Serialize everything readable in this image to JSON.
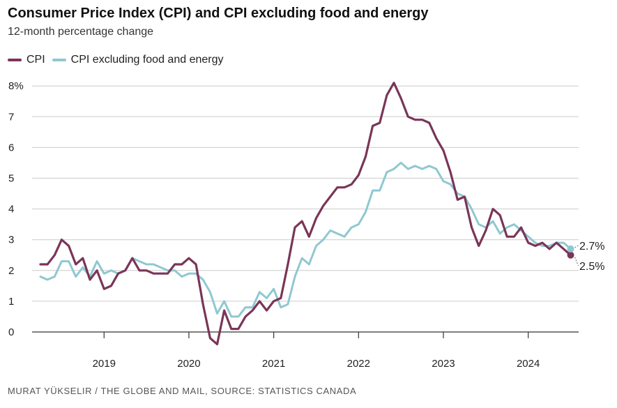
{
  "chart_data": {
    "type": "line",
    "title": "Consumer Price Index (CPI) and CPI excluding food and energy",
    "subtitle": "12-month percentage change",
    "ylim": [
      -0.5,
      8
    ],
    "yticks": [
      0,
      1,
      2,
      3,
      4,
      5,
      6,
      7,
      8
    ],
    "ytick_labels": [
      "0",
      "1",
      "2",
      "3",
      "4",
      "5",
      "6",
      "7",
      "8%"
    ],
    "x_start": "2018-04",
    "x_end": "2024-07",
    "xtick_labels": [
      "2019",
      "2020",
      "2021",
      "2022",
      "2023",
      "2024"
    ],
    "grid": true,
    "legend_position": "top-left",
    "source": "MURAT YÜKSELIR / THE GLOBE AND MAIL, SOURCE: STATISTICS CANADA",
    "series": [
      {
        "name": "CPI",
        "color": "#7a3558",
        "end_label": "2.5%",
        "values": [
          2.2,
          2.2,
          2.5,
          3.0,
          2.8,
          2.2,
          2.4,
          1.7,
          2.0,
          1.4,
          1.5,
          1.9,
          2.0,
          2.4,
          2.0,
          2.0,
          1.9,
          1.9,
          1.9,
          2.2,
          2.2,
          2.4,
          2.2,
          0.9,
          -0.2,
          -0.4,
          0.7,
          0.1,
          0.1,
          0.5,
          0.7,
          1.0,
          0.7,
          1.0,
          1.1,
          2.2,
          3.4,
          3.6,
          3.1,
          3.7,
          4.1,
          4.4,
          4.7,
          4.7,
          4.8,
          5.1,
          5.7,
          6.7,
          6.8,
          7.7,
          8.1,
          7.6,
          7.0,
          6.9,
          6.9,
          6.8,
          6.3,
          5.9,
          5.2,
          4.3,
          4.4,
          3.4,
          2.8,
          3.3,
          4.0,
          3.8,
          3.1,
          3.1,
          3.4,
          2.9,
          2.8,
          2.9,
          2.7,
          2.9,
          2.7,
          2.5
        ]
      },
      {
        "name": "CPI excluding food and energy",
        "color": "#8fc8d1",
        "end_label": "2.7%",
        "values": [
          1.8,
          1.7,
          1.8,
          2.3,
          2.3,
          1.8,
          2.1,
          1.8,
          2.3,
          1.9,
          2.0,
          1.9,
          2.0,
          2.4,
          2.3,
          2.2,
          2.2,
          2.1,
          2.0,
          2.0,
          1.8,
          1.9,
          1.9,
          1.7,
          1.3,
          0.6,
          1.0,
          0.5,
          0.5,
          0.8,
          0.8,
          1.3,
          1.1,
          1.4,
          0.8,
          0.9,
          1.8,
          2.4,
          2.2,
          2.8,
          3.0,
          3.3,
          3.2,
          3.1,
          3.4,
          3.5,
          3.9,
          4.6,
          4.6,
          5.2,
          5.3,
          5.5,
          5.3,
          5.4,
          5.3,
          5.4,
          5.3,
          4.9,
          4.8,
          4.5,
          4.4,
          4.0,
          3.5,
          3.4,
          3.6,
          3.2,
          3.4,
          3.5,
          3.3,
          3.1,
          2.9,
          2.8,
          2.8,
          2.9,
          2.9,
          2.7
        ]
      }
    ]
  }
}
